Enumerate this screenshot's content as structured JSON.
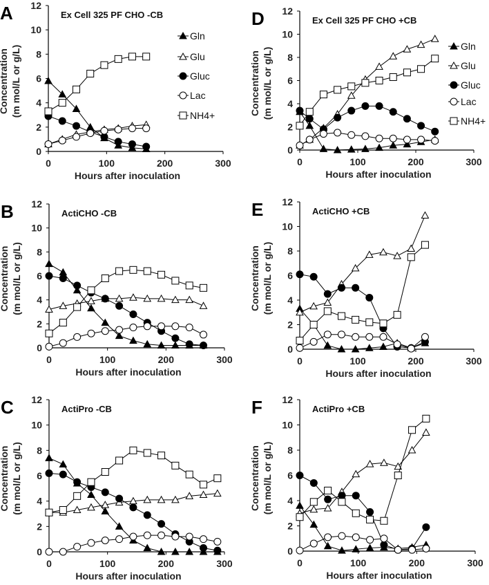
{
  "chart_data": [
    {
      "type": "line",
      "letter": "A",
      "title": "Ex Cell 325 PF CHO  -CB",
      "xlabel": "Hours after inoculation",
      "ylabel": [
        "Concentration",
        "(m mol/L or g/L)"
      ],
      "xlim": [
        0,
        300
      ],
      "ylim": [
        0,
        12
      ],
      "xticks": [
        "0",
        "100",
        "200",
        "300"
      ],
      "yticks": [
        "0",
        "2",
        "4",
        "6",
        "8",
        "10",
        "12"
      ],
      "legend": "right",
      "x": [
        0,
        24,
        48,
        72,
        96,
        120,
        144,
        168
      ],
      "series": [
        {
          "name": "Gln",
          "values": [
            5.8,
            4.7,
            3.5,
            2.0,
            1.1,
            0.5,
            0.3,
            0.2
          ]
        },
        {
          "name": "Glu",
          "values": [
            0.6,
            1.0,
            1.4,
            1.6,
            1.8,
            1.9,
            2.1,
            2.2
          ]
        },
        {
          "name": "Gluc",
          "values": [
            2.9,
            2.5,
            2.1,
            1.6,
            1.2,
            0.8,
            0.6,
            0.4
          ]
        },
        {
          "name": "Lac",
          "values": [
            0.6,
            0.9,
            1.2,
            1.5,
            1.7,
            1.8,
            1.9,
            1.9
          ]
        },
        {
          "name": "NH4+",
          "values": [
            3.3,
            4.0,
            5.1,
            6.4,
            7.1,
            7.6,
            7.8,
            7.8
          ]
        }
      ]
    },
    {
      "type": "line",
      "letter": "B",
      "title": "ActiCHO  -CB",
      "xlabel": "Hours after inoculation",
      "ylabel": [
        "Concentration",
        "(m mol/L or g/L)"
      ],
      "xlim": [
        0,
        300
      ],
      "ylim": [
        0,
        12
      ],
      "xticks": [
        "0",
        "100",
        "200",
        "300"
      ],
      "yticks": [
        "0",
        "2",
        "4",
        "6",
        "8",
        "10",
        "12"
      ],
      "x": [
        0,
        24,
        48,
        72,
        96,
        120,
        144,
        168,
        192,
        216,
        240,
        264
      ],
      "series": [
        {
          "name": "Gln",
          "values": [
            7.0,
            6.3,
            4.8,
            3.3,
            2.1,
            1.0,
            0.6,
            0.3,
            0.2,
            0.2,
            0.2,
            0.2
          ]
        },
        {
          "name": "Glu",
          "values": [
            3.2,
            3.5,
            3.7,
            3.9,
            4.1,
            4.1,
            4.2,
            4.1,
            4.1,
            4.0,
            4.0,
            3.5
          ]
        },
        {
          "name": "Gluc",
          "values": [
            6.0,
            5.8,
            5.2,
            4.6,
            4.1,
            3.5,
            2.8,
            2.1,
            1.4,
            0.8,
            0.3,
            0.2
          ]
        },
        {
          "name": "Lac",
          "values": [
            0.1,
            0.4,
            0.9,
            1.2,
            1.4,
            1.5,
            1.7,
            1.8,
            1.8,
            1.8,
            1.7,
            1.1
          ]
        },
        {
          "name": "NH4+",
          "values": [
            1.2,
            2.1,
            3.4,
            4.8,
            5.8,
            6.4,
            6.5,
            6.4,
            6.1,
            5.6,
            5.2,
            5.0
          ]
        }
      ]
    },
    {
      "type": "line",
      "letter": "C",
      "title": "ActiPro  -CB",
      "xlabel": "Hours after inoculation",
      "ylabel": [
        "Concentration",
        "(m mol/L or g/L)"
      ],
      "xlim": [
        0,
        300
      ],
      "ylim": [
        0,
        12
      ],
      "xticks": [
        "0",
        "100",
        "200",
        "300"
      ],
      "yticks": [
        "0",
        "2",
        "4",
        "6",
        "8",
        "10",
        "12"
      ],
      "x": [
        0,
        24,
        48,
        72,
        96,
        120,
        144,
        168,
        192,
        216,
        240,
        264,
        288
      ],
      "series": [
        {
          "name": "Gln",
          "values": [
            7.4,
            6.9,
            5.4,
            4.5,
            3.2,
            2.0,
            0.9,
            0.3,
            0,
            0,
            0,
            0,
            0
          ]
        },
        {
          "name": "Glu",
          "values": [
            3.1,
            3.1,
            3.3,
            3.5,
            3.7,
            3.9,
            4.0,
            4.1,
            4.1,
            4.1,
            4.4,
            4.5,
            4.6
          ]
        },
        {
          "name": "Gluc",
          "values": [
            6.2,
            6.1,
            5.5,
            5.1,
            4.7,
            4.2,
            3.5,
            2.9,
            2.2,
            1.4,
            0.8,
            0.3,
            0.1
          ]
        },
        {
          "name": "Lac",
          "values": [
            0,
            0,
            0.4,
            0.7,
            0.9,
            1.0,
            1.2,
            1.3,
            1.3,
            1.2,
            1.2,
            1.0,
            0.8
          ]
        },
        {
          "name": "NH4+",
          "values": [
            3.1,
            3.3,
            4.4,
            5.5,
            6.3,
            7.2,
            8.0,
            7.8,
            7.6,
            6.8,
            6.1,
            5.3,
            5.8
          ]
        }
      ]
    },
    {
      "type": "line",
      "letter": "D",
      "title": "Ex Cell 325 PF CHO +CB",
      "xlabel": "Hours after inoculation",
      "ylabel": [
        "Concentration",
        "(m mol/L or g/L)"
      ],
      "xlim": [
        0,
        300
      ],
      "ylim": [
        0,
        12
      ],
      "xticks": [
        "0",
        "100",
        "200",
        "300"
      ],
      "yticks": [
        "0",
        "2",
        "4",
        "6",
        "8",
        "10",
        "12"
      ],
      "legend": "right",
      "x": [
        0,
        17,
        41,
        65,
        89,
        113,
        137,
        161,
        185,
        209,
        233
      ],
      "series": [
        {
          "name": "Gln",
          "values": [
            3.3,
            2.1,
            0.1,
            0,
            0.05,
            0.1,
            0.2,
            0.4,
            0.5,
            0.7,
            0.9
          ]
        },
        {
          "name": "Glu",
          "values": [
            0.4,
            0.9,
            1.9,
            3.1,
            4.7,
            6.1,
            7.2,
            8.1,
            8.7,
            9.1,
            9.6
          ]
        },
        {
          "name": "Gluc",
          "values": [
            3.4,
            2.7,
            1.8,
            2.8,
            3.4,
            3.8,
            3.8,
            3.3,
            2.7,
            2.1,
            1.6
          ]
        },
        {
          "name": "Lac",
          "values": [
            0.4,
            0.9,
            1.4,
            1.5,
            1.3,
            1.2,
            1.0,
            1.0,
            0.9,
            0.9,
            0.8
          ]
        },
        {
          "name": "NH4+",
          "values": [
            2.1,
            3.3,
            4.8,
            5.2,
            5.5,
            5.8,
            6.0,
            6.3,
            6.7,
            7.0,
            7.9
          ]
        }
      ]
    },
    {
      "type": "line",
      "letter": "E",
      "title": "ActiCHO +CB",
      "xlabel": "Hours after inoculation",
      "ylabel": [
        "Concentration",
        "(m mol/L or g/L)"
      ],
      "xlim": [
        0,
        300
      ],
      "ylim": [
        0,
        12
      ],
      "xticks": [
        "0",
        "100",
        "200",
        "300"
      ],
      "yticks": [
        "0",
        "2",
        "4",
        "6",
        "8",
        "10",
        "12"
      ],
      "x": [
        0,
        24,
        48,
        72,
        96,
        120,
        144,
        168,
        192,
        216
      ],
      "series": [
        {
          "name": "Gln",
          "values": [
            3.3,
            2.0,
            0.3,
            0,
            0,
            0.1,
            0.2,
            0.5,
            0.1,
            0.5
          ]
        },
        {
          "name": "Glu",
          "values": [
            3.0,
            3.5,
            3.8,
            5.3,
            6.6,
            7.7,
            7.9,
            7.6,
            8.2,
            10.9
          ]
        },
        {
          "name": "Gluc",
          "values": [
            6.1,
            5.9,
            4.5,
            5.0,
            5.0,
            4.2,
            1.7,
            0.2,
            0.1,
            0.6
          ]
        },
        {
          "name": "Lac",
          "values": [
            0.1,
            0.6,
            1.2,
            1.2,
            1.0,
            1.0,
            1.0,
            0.4,
            0.05,
            1.0
          ]
        },
        {
          "name": "NH4+",
          "values": [
            0.7,
            2.0,
            3.1,
            2.7,
            2.4,
            2.2,
            2.1,
            2.8,
            7.5,
            8.5
          ]
        }
      ]
    },
    {
      "type": "line",
      "letter": "F",
      "title": "ActiPro +CB",
      "xlabel": "Hours after inoculation",
      "ylabel": [
        "Concentration",
        "(m mol/L or g/L)"
      ],
      "xlim": [
        0,
        300
      ],
      "ylim": [
        0,
        12
      ],
      "xticks": [
        "0",
        "100",
        "200",
        "300"
      ],
      "yticks": [
        "0",
        "2",
        "4",
        "6",
        "8",
        "10",
        "12"
      ],
      "x": [
        0,
        24,
        48,
        72,
        96,
        120,
        144,
        168,
        192,
        216
      ],
      "series": [
        {
          "name": "Gln",
          "values": [
            3.6,
            2.1,
            0.4,
            0.05,
            0.15,
            0.25,
            0.3,
            0.2,
            0.3,
            0.5
          ]
        },
        {
          "name": "Glu",
          "values": [
            3.0,
            3.3,
            3.4,
            4.7,
            6.1,
            6.9,
            7.0,
            6.7,
            8.0,
            9.4
          ]
        },
        {
          "name": "Gluc",
          "values": [
            6.0,
            5.4,
            4.1,
            4.4,
            4.4,
            3.1,
            0.5,
            0.1,
            0.2,
            1.9
          ]
        },
        {
          "name": "Lac",
          "values": [
            0.05,
            0.6,
            1.1,
            1.2,
            1.1,
            0.9,
            1.0,
            0.1,
            0.1,
            0.2
          ]
        },
        {
          "name": "NH4+",
          "values": [
            2.7,
            3.9,
            4.8,
            3.9,
            3.0,
            2.5,
            2.4,
            6.0,
            9.6,
            10.5
          ]
        }
      ]
    }
  ]
}
